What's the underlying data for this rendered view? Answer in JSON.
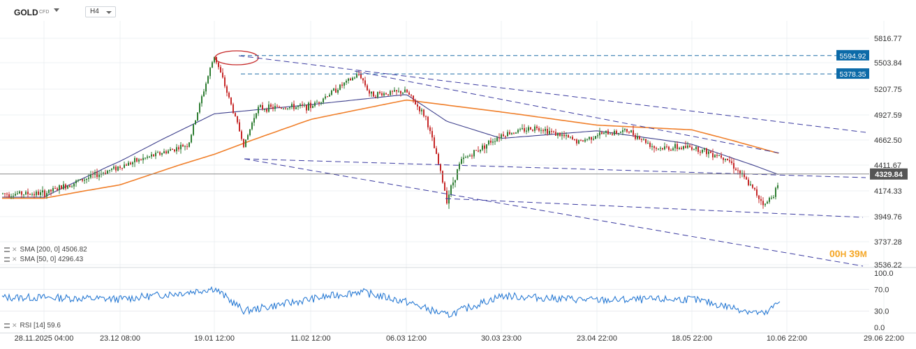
{
  "header": {
    "symbol": "GOLD",
    "instrument_type": "CFD",
    "timeframe": "H4"
  },
  "colors": {
    "up_candle": "#2e7d32",
    "down_candle": "#c62828",
    "sma200": "#f07f2a",
    "sma50": "#3d3f8c",
    "trendline": "#3a3aa0",
    "level_line": "#1f6fa8",
    "price_tag": "#0b6aa8",
    "last_price_tag": "#555555",
    "rsi": "#2a7bd4",
    "countdown": "#f5a623",
    "ellipse": "#c62828"
  },
  "price_axis": {
    "ticks": [
      "5816.77",
      "5503.84",
      "5207.75",
      "4927.59",
      "4662.50",
      "4411.67",
      "4174.33",
      "3949.76",
      "3737.28",
      "3536.22"
    ]
  },
  "price_tags": {
    "level_1": "5594.92",
    "level_2": "5378.35",
    "last_price": "4329.84"
  },
  "rsi_axis": {
    "ticks": [
      "100.0",
      "70.0",
      "30.0",
      "0.0"
    ]
  },
  "time_axis": {
    "labels": [
      "28.11.2025 04:00",
      "23.12 08:00",
      "19.01 12:00",
      "11.02 12:00",
      "06.03 12:00",
      "30.03 23:00",
      "23.04 22:00",
      "18.05 22:00",
      "10.06 22:00",
      "29.06 22:00"
    ]
  },
  "indicators": {
    "sma200_label": "SMA [200, 0] 4506.82",
    "sma50_label": "SMA [50, 0] 4296.43",
    "rsi_label": "RSI [14] 59.6"
  },
  "countdown": {
    "hours": "00",
    "h_unit": "H",
    "minutes": "39",
    "m_unit": "M"
  },
  "icons": {
    "indicator_menu": "list-icon",
    "remove": "close-icon",
    "dropdown": "chevron-down-icon"
  },
  "chart_data": {
    "type": "candlestick",
    "title": "",
    "ylim": [
      3536.22,
      5816.77
    ],
    "last_price": 4329.84,
    "levels": [
      5594.92,
      5378.35
    ],
    "price_path": [
      [
        "28.11.2025 04:00",
        4150
      ],
      [
        "23.12 08:00",
        4400
      ],
      [
        "14.01",
        4620
      ],
      [
        "19.01 12:00",
        5590
      ],
      [
        "21.01",
        4600
      ],
      [
        "23.01",
        5000
      ],
      [
        "11.02 12:00",
        5020
      ],
      [
        "20.02",
        5200
      ],
      [
        "26.02",
        5380
      ],
      [
        "28.02",
        5150
      ],
      [
        "06.03 12:00",
        5180
      ],
      [
        "15.03",
        4900
      ],
      [
        "20.03",
        4420
      ],
      [
        "23.03",
        4100
      ],
      [
        "26.03",
        4450
      ],
      [
        "30.03 23:00",
        4720
      ],
      [
        "10.04",
        4800
      ],
      [
        "20.04",
        4640
      ],
      [
        "23.04 22:00",
        4720
      ],
      [
        "01.05",
        4760
      ],
      [
        "10.05",
        4580
      ],
      [
        "18.05 22:00",
        4590
      ],
      [
        "28.05",
        4490
      ],
      [
        "05.06",
        4050
      ],
      [
        "10.06 22:00",
        4330
      ]
    ],
    "sma200_path": [
      [
        "28.11.2025 04:00",
        4110
      ],
      [
        "23.12 08:00",
        4230
      ],
      [
        "19.01 12:00",
        4520
      ],
      [
        "11.02 12:00",
        4880
      ],
      [
        "06.03 12:00",
        5090
      ],
      [
        "30.03 23:00",
        4960
      ],
      [
        "23.04 22:00",
        4820
      ],
      [
        "18.05 22:00",
        4770
      ],
      [
        "10.06 22:00",
        4506.82
      ]
    ],
    "sma50_path": [
      [
        "28.11.2025 04:00",
        4120
      ],
      [
        "23.12 08:00",
        4450
      ],
      [
        "19.01 12:00",
        4940
      ],
      [
        "11.02 12:00",
        5040
      ],
      [
        "06.03 12:00",
        5150
      ],
      [
        "23.03",
        4860
      ],
      [
        "30.03 23:00",
        4680
      ],
      [
        "23.04 22:00",
        4760
      ],
      [
        "18.05 22:00",
        4620
      ],
      [
        "10.06 22:00",
        4296.43
      ]
    ],
    "rsi": {
      "ylim": [
        0,
        100
      ],
      "last": 59.6,
      "path": [
        [
          "28.11.2025 04:00",
          55
        ],
        [
          "23.12 08:00",
          52
        ],
        [
          "14.01",
          65
        ],
        [
          "19.01 12:00",
          72
        ],
        [
          "21.01",
          30
        ],
        [
          "11.02 12:00",
          52
        ],
        [
          "26.02",
          66
        ],
        [
          "06.03 12:00",
          47
        ],
        [
          "23.03",
          22
        ],
        [
          "30.03 23:00",
          58
        ],
        [
          "23.04 22:00",
          50
        ],
        [
          "18.05 22:00",
          52
        ],
        [
          "05.06",
          24
        ],
        [
          "10.06 22:00",
          59.6
        ]
      ]
    }
  }
}
